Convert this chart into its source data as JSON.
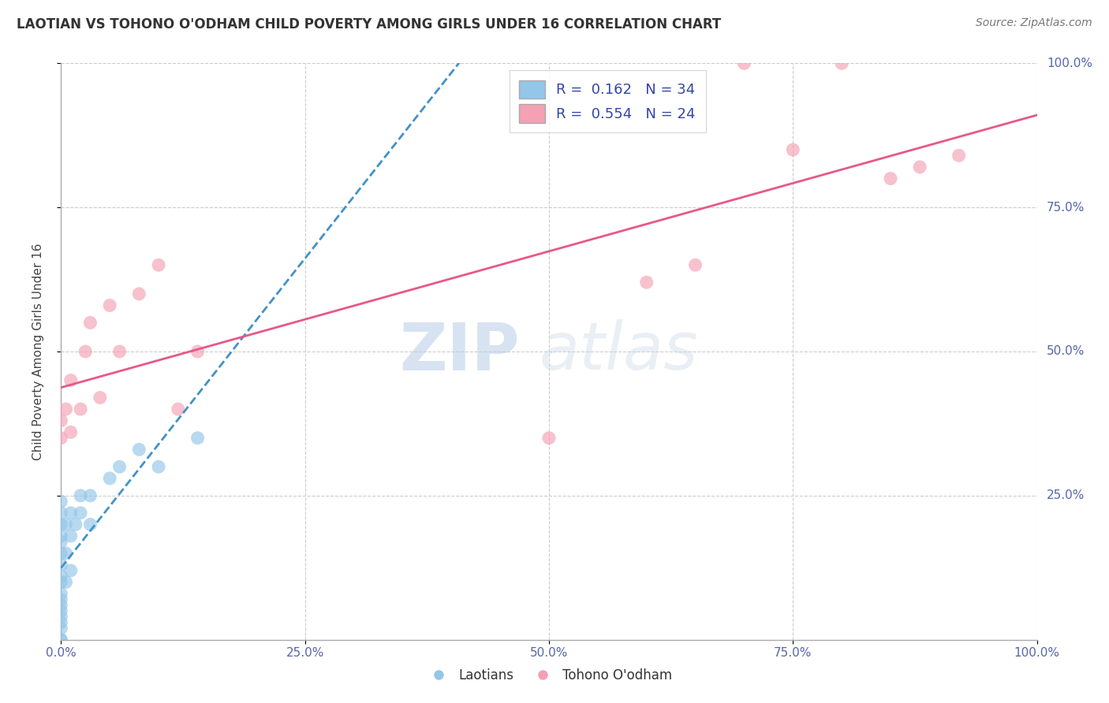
{
  "title": "LAOTIAN VS TOHONO O'ODHAM CHILD POVERTY AMONG GIRLS UNDER 16 CORRELATION CHART",
  "source": "Source: ZipAtlas.com",
  "ylabel": "Child Poverty Among Girls Under 16",
  "xlabel": "",
  "xlim": [
    0,
    1.0
  ],
  "ylim": [
    0,
    1.0
  ],
  "xticks": [
    0.0,
    0.25,
    0.5,
    0.75,
    1.0
  ],
  "xticklabels": [
    "0.0%",
    "25.0%",
    "50.0%",
    "75.0%",
    "100.0%"
  ],
  "yticks": [
    0.25,
    0.5,
    0.75,
    1.0
  ],
  "yticklabels": [
    "25.0%",
    "50.0%",
    "75.0%",
    "100.0%"
  ],
  "grid_color": "#cccccc",
  "background_color": "#ffffff",
  "laotian_color": "#93c6e8",
  "tohono_color": "#f4a0b5",
  "laotian_line_color": "#4292c6",
  "tohono_line_color": "#e8578a",
  "R_laotian": 0.162,
  "N_laotian": 34,
  "R_tohono": 0.554,
  "N_tohono": 24,
  "watermark_zip": "ZIP",
  "watermark_atlas": "atlas",
  "laotian_x": [
    0.0,
    0.0,
    0.0,
    0.0,
    0.0,
    0.0,
    0.0,
    0.0,
    0.0,
    0.0,
    0.0,
    0.0,
    0.0,
    0.0,
    0.0,
    0.0,
    0.0,
    0.0,
    0.005,
    0.005,
    0.005,
    0.01,
    0.01,
    0.01,
    0.015,
    0.02,
    0.02,
    0.03,
    0.03,
    0.05,
    0.06,
    0.08,
    0.1,
    0.14
  ],
  "laotian_y": [
    0.0,
    0.0,
    0.02,
    0.03,
    0.04,
    0.05,
    0.06,
    0.07,
    0.08,
    0.1,
    0.11,
    0.13,
    0.15,
    0.17,
    0.18,
    0.2,
    0.22,
    0.24,
    0.1,
    0.15,
    0.2,
    0.12,
    0.18,
    0.22,
    0.2,
    0.22,
    0.25,
    0.2,
    0.25,
    0.28,
    0.3,
    0.33,
    0.3,
    0.35
  ],
  "tohono_x": [
    0.0,
    0.0,
    0.005,
    0.01,
    0.01,
    0.02,
    0.025,
    0.03,
    0.04,
    0.05,
    0.06,
    0.08,
    0.1,
    0.12,
    0.14,
    0.5,
    0.6,
    0.65,
    0.7,
    0.75,
    0.8,
    0.85,
    0.88,
    0.92
  ],
  "tohono_y": [
    0.35,
    0.38,
    0.4,
    0.36,
    0.45,
    0.4,
    0.5,
    0.55,
    0.42,
    0.58,
    0.5,
    0.6,
    0.65,
    0.4,
    0.5,
    0.35,
    0.62,
    0.65,
    1.0,
    0.85,
    1.0,
    0.8,
    0.82,
    0.84
  ]
}
